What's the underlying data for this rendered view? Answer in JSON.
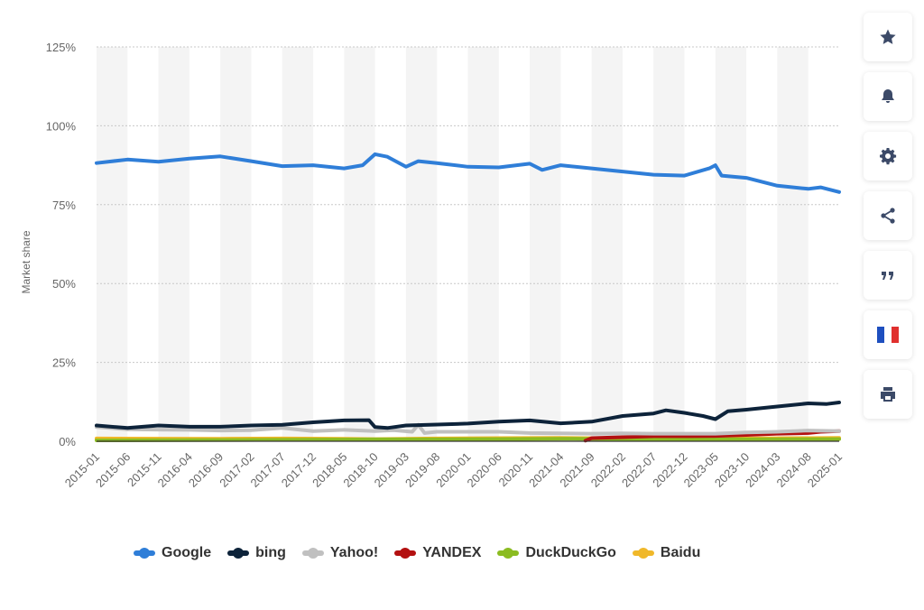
{
  "chart_data": {
    "type": "line",
    "ylabel": "Market share",
    "ylim": [
      0,
      125
    ],
    "yticks": [
      0,
      25,
      50,
      75,
      100,
      125
    ],
    "ytick_suffix": "%",
    "x_start": "2015-01",
    "x_end": "2025-01",
    "x_tick_labels": [
      "2015-01",
      "2015-06",
      "2015-11",
      "2016-04",
      "2016-09",
      "2017-02",
      "2017-07",
      "2017-12",
      "2018-05",
      "2018-10",
      "2019-03",
      "2019-08",
      "2020-01",
      "2020-06",
      "2020-11",
      "2021-04",
      "2021-09",
      "2022-02",
      "2022-07",
      "2022-12",
      "2023-05",
      "2023-10",
      "2024-03",
      "2024-08",
      "2025-01"
    ],
    "grid": true,
    "legend_position": "bottom",
    "series": [
      {
        "name": "Google",
        "color": "#2f7ed8",
        "points": [
          [
            "2015-01",
            88.2
          ],
          [
            "2015-06",
            89.3
          ],
          [
            "2015-11",
            88.6
          ],
          [
            "2016-04",
            89.6
          ],
          [
            "2016-09",
            90.3
          ],
          [
            "2017-02",
            88.8
          ],
          [
            "2017-07",
            87.2
          ],
          [
            "2017-12",
            87.5
          ],
          [
            "2018-05",
            86.5
          ],
          [
            "2018-08",
            87.5
          ],
          [
            "2018-10",
            91.0
          ],
          [
            "2018-12",
            90.2
          ],
          [
            "2019-03",
            87.0
          ],
          [
            "2019-05",
            88.8
          ],
          [
            "2019-08",
            88.2
          ],
          [
            "2020-01",
            87.0
          ],
          [
            "2020-06",
            86.8
          ],
          [
            "2020-11",
            88.0
          ],
          [
            "2021-01",
            86.0
          ],
          [
            "2021-04",
            87.5
          ],
          [
            "2021-09",
            86.5
          ],
          [
            "2022-02",
            85.5
          ],
          [
            "2022-07",
            84.5
          ],
          [
            "2022-12",
            84.2
          ],
          [
            "2023-04",
            86.5
          ],
          [
            "2023-05",
            87.5
          ],
          [
            "2023-06",
            84.2
          ],
          [
            "2023-10",
            83.5
          ],
          [
            "2024-03",
            81.0
          ],
          [
            "2024-08",
            80.0
          ],
          [
            "2024-10",
            80.5
          ],
          [
            "2025-01",
            79.0
          ]
        ]
      },
      {
        "name": "bing",
        "color": "#0d233a",
        "points": [
          [
            "2015-01",
            5.0
          ],
          [
            "2015-06",
            4.2
          ],
          [
            "2015-11",
            5.0
          ],
          [
            "2016-04",
            4.6
          ],
          [
            "2016-09",
            4.6
          ],
          [
            "2017-02",
            5.0
          ],
          [
            "2017-07",
            5.2
          ],
          [
            "2017-12",
            6.0
          ],
          [
            "2018-05",
            6.6
          ],
          [
            "2018-09",
            6.7
          ],
          [
            "2018-10",
            4.5
          ],
          [
            "2018-12",
            4.2
          ],
          [
            "2019-03",
            5.0
          ],
          [
            "2019-08",
            5.3
          ],
          [
            "2020-01",
            5.6
          ],
          [
            "2020-06",
            6.2
          ],
          [
            "2020-11",
            6.6
          ],
          [
            "2021-04",
            5.7
          ],
          [
            "2021-09",
            6.2
          ],
          [
            "2022-02",
            8.0
          ],
          [
            "2022-07",
            8.8
          ],
          [
            "2022-09",
            9.8
          ],
          [
            "2022-12",
            9.0
          ],
          [
            "2023-03",
            8.0
          ],
          [
            "2023-05",
            7.0
          ],
          [
            "2023-07",
            9.5
          ],
          [
            "2023-10",
            10.0
          ],
          [
            "2024-03",
            11.0
          ],
          [
            "2024-08",
            12.0
          ],
          [
            "2024-11",
            11.8
          ],
          [
            "2025-01",
            12.3
          ]
        ]
      },
      {
        "name": "Yahoo!",
        "color": "#c0c0c0",
        "points": [
          [
            "2015-01",
            4.5
          ],
          [
            "2015-06",
            3.8
          ],
          [
            "2015-11",
            3.7
          ],
          [
            "2016-04",
            3.6
          ],
          [
            "2016-09",
            3.4
          ],
          [
            "2017-02",
            3.5
          ],
          [
            "2017-07",
            4.2
          ],
          [
            "2017-12",
            3.2
          ],
          [
            "2018-05",
            3.6
          ],
          [
            "2018-10",
            3.2
          ],
          [
            "2019-01",
            3.5
          ],
          [
            "2019-04",
            3.0
          ],
          [
            "2019-05",
            5.2
          ],
          [
            "2019-06",
            2.6
          ],
          [
            "2019-08",
            3.0
          ],
          [
            "2020-01",
            3.0
          ],
          [
            "2020-06",
            3.0
          ],
          [
            "2020-11",
            2.6
          ],
          [
            "2021-04",
            2.5
          ],
          [
            "2021-09",
            2.4
          ],
          [
            "2022-02",
            2.5
          ],
          [
            "2022-07",
            2.4
          ],
          [
            "2022-12",
            2.4
          ],
          [
            "2023-05",
            2.4
          ],
          [
            "2023-10",
            2.8
          ],
          [
            "2024-03",
            3.0
          ],
          [
            "2024-08",
            3.4
          ],
          [
            "2025-01",
            3.2
          ]
        ]
      },
      {
        "name": "YANDEX",
        "color": "#b31010",
        "points": [
          [
            "2021-08",
            0.2
          ],
          [
            "2021-09",
            1.0
          ],
          [
            "2022-02",
            1.3
          ],
          [
            "2022-07",
            1.6
          ],
          [
            "2022-12",
            1.6
          ],
          [
            "2023-05",
            1.7
          ],
          [
            "2023-10",
            2.0
          ],
          [
            "2024-03",
            2.4
          ],
          [
            "2024-08",
            2.6
          ],
          [
            "2024-10",
            3.0
          ],
          [
            "2025-01",
            3.2
          ]
        ]
      },
      {
        "name": "DuckDuckGo",
        "color": "#8bbc21",
        "points": [
          [
            "2015-01",
            0.3
          ],
          [
            "2016-09",
            0.4
          ],
          [
            "2017-12",
            0.5
          ],
          [
            "2018-10",
            0.6
          ],
          [
            "2019-08",
            0.6
          ],
          [
            "2020-06",
            0.7
          ],
          [
            "2021-04",
            0.8
          ],
          [
            "2022-02",
            0.7
          ],
          [
            "2023-05",
            0.6
          ],
          [
            "2024-03",
            0.6
          ],
          [
            "2025-01",
            0.7
          ]
        ]
      },
      {
        "name": "Baidu",
        "color": "#f0b82a",
        "points": [
          [
            "2015-01",
            0.9
          ],
          [
            "2016-09",
            0.8
          ],
          [
            "2017-07",
            0.9
          ],
          [
            "2018-05",
            0.8
          ],
          [
            "2018-10",
            0.7
          ],
          [
            "2019-08",
            0.9
          ],
          [
            "2020-06",
            1.0
          ],
          [
            "2021-04",
            1.1
          ],
          [
            "2022-02",
            0.9
          ],
          [
            "2022-12",
            0.8
          ],
          [
            "2023-10",
            0.9
          ],
          [
            "2024-08",
            1.0
          ],
          [
            "2025-01",
            1.1
          ]
        ]
      }
    ]
  },
  "toolbar": {
    "items": [
      {
        "name": "star-icon"
      },
      {
        "name": "bell-icon"
      },
      {
        "name": "gear-icon"
      },
      {
        "name": "share-icon"
      },
      {
        "name": "quote-icon"
      },
      {
        "name": "flag-france-icon"
      },
      {
        "name": "print-icon"
      }
    ]
  }
}
